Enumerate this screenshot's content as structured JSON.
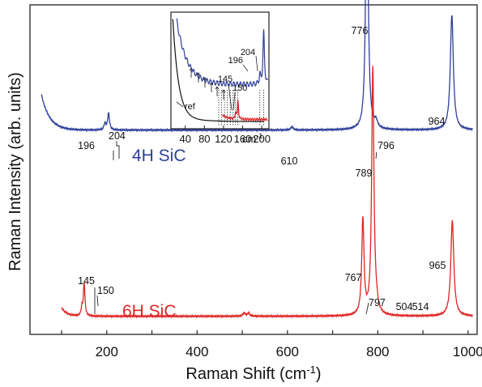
{
  "chart_data": {
    "type": "line",
    "xlabel": "Raman Shift (cm",
    "xlabel_sup": "-1",
    "xlabel_end": ")",
    "ylabel": "Raman Intensity (arb. units)",
    "xlim": [
      30,
      1020
    ],
    "xticks": [
      "200",
      "400",
      "600",
      "800",
      "1000"
    ],
    "grid": false,
    "series": [
      {
        "name": "4H SiC",
        "color": "#2e3f9a",
        "baseline": 0.62,
        "start": 55,
        "peaks": [
          {
            "x": 196,
            "h": 0.02,
            "w": 2.5,
            "label": "196"
          },
          {
            "x": 204,
            "h": 0.05,
            "w": 2.5,
            "label": "204"
          },
          {
            "x": 610,
            "h": 0.01,
            "w": 3,
            "label": "610"
          },
          {
            "x": 776,
            "h": 0.9,
            "w": 3,
            "label": "776"
          },
          {
            "x": 796,
            "h": 0.02,
            "w": 4,
            "label": "796"
          },
          {
            "x": 964,
            "h": 0.35,
            "w": 4,
            "label": "964"
          }
        ]
      },
      {
        "name": "6H SiC",
        "color": "#e02424",
        "baseline": 0.055,
        "start": 100,
        "peaks": [
          {
            "x": 145,
            "h": 0.025,
            "w": 2,
            "label": "145"
          },
          {
            "x": 150,
            "h": 0.1,
            "w": 2,
            "label": "150"
          },
          {
            "x": 504,
            "h": 0.01,
            "w": 3,
            "label": "504"
          },
          {
            "x": 514,
            "h": 0.01,
            "w": 3,
            "label": "514"
          },
          {
            "x": 767,
            "h": 0.29,
            "w": 3,
            "label": "767"
          },
          {
            "x": 789,
            "h": 0.75,
            "w": 3,
            "label": "789"
          },
          {
            "x": 797,
            "h": 0.02,
            "w": 4,
            "label": "797"
          },
          {
            "x": 965,
            "h": 0.29,
            "w": 4,
            "label": "965"
          }
        ]
      }
    ],
    "inset": {
      "xlim": [
        10,
        215
      ],
      "xticks": [
        "40",
        "80",
        "120",
        "160",
        "200"
      ],
      "xunit": "cm",
      "xunit_sup": "-1",
      "ref_label": "ref",
      "peak_labels": [
        "145",
        "150",
        "196",
        "204"
      ]
    }
  }
}
